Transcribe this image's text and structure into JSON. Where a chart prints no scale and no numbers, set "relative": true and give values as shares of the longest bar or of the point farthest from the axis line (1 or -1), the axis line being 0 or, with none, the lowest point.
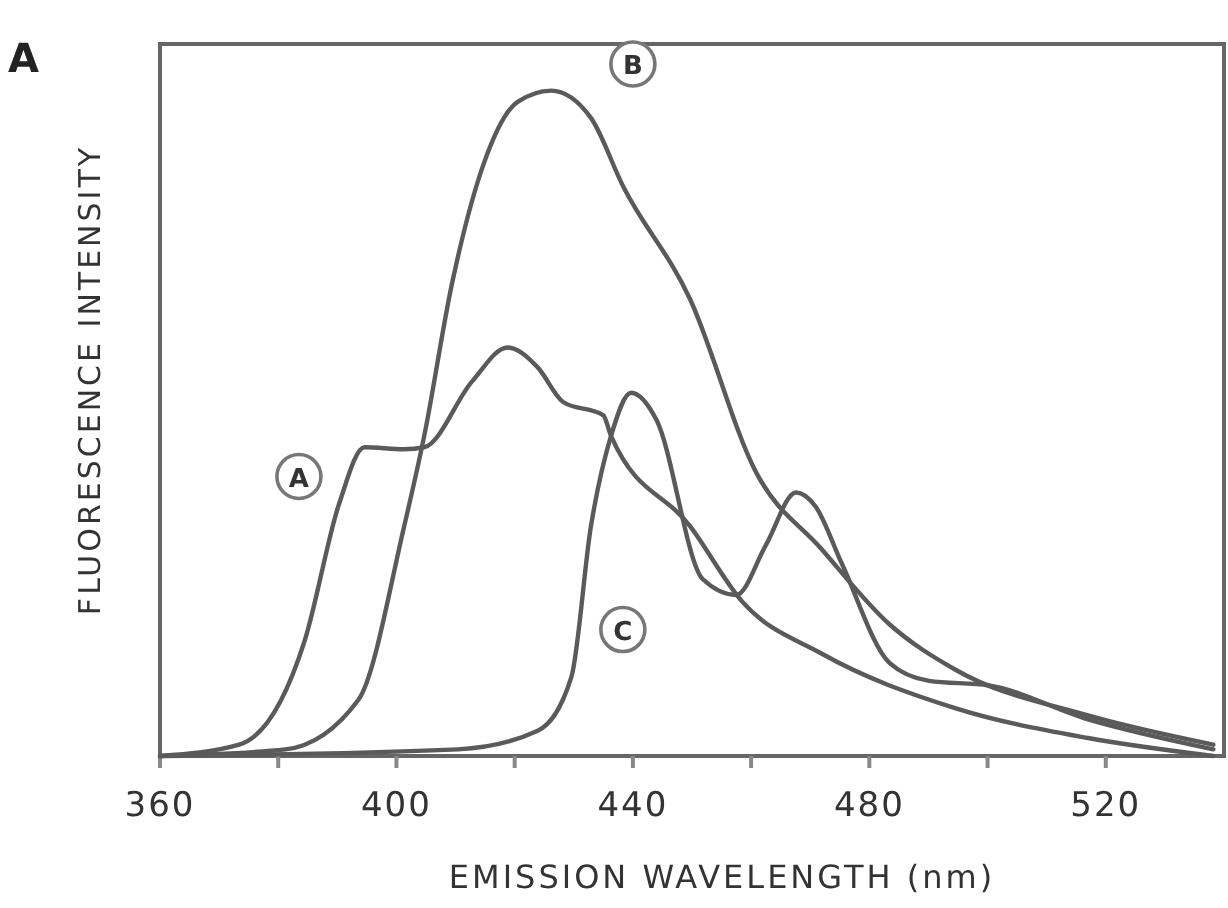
{
  "chart_data": {
    "type": "line",
    "relative": true,
    "xlabel": "EMISSION WAVELENGTH (nm)",
    "ylabel": "FLUORESCENCE INTENSITY",
    "xlim": [
      360,
      540
    ],
    "xticks": [
      360,
      {
        "value": 380,
        "label": null
      },
      400,
      {
        "value": 420,
        "label": null
      },
      440,
      {
        "value": 460,
        "label": null
      },
      480,
      {
        "value": 500,
        "label": null
      },
      520
    ],
    "grid": false,
    "marker": "none",
    "line_style": "solid",
    "annotations": [
      "A",
      {
        "text": "A",
        "x": 383.5,
        "y": 0.42
      },
      {
        "text": "B",
        "x": 440,
        "y": 1.04
      },
      {
        "text": "C",
        "x": 438.3,
        "y": 0.19
      }
    ],
    "series": [
      {
        "color": "#5a5a5a",
        "x": [
          360,
          373.4,
          384.5,
          390.3,
          394.6,
          401.3,
          404.7,
          412.8,
          418.8,
          423.9,
          428.2,
          435,
          436.3,
          449.7,
          458.5,
          471.9,
          494.5,
          517,
          538.2
        ],
        "values": [
          0,
          0.017,
          0.174,
          0.379,
          0.464,
          0.461,
          0.464,
          0.563,
          0.614,
          0.584,
          0.532,
          0.512,
          0.481,
          0.345,
          0.232,
          0.154,
          0.072,
          0.027,
          0
        ]
      },
      {
        "color": "#5a5a5a",
        "x": [
          360,
          381.2,
          393.6,
          401.3,
          404.7,
          409.4,
          414.8,
          420.5,
          426.2,
          432.9,
          438.3,
          449.7,
          460.8,
          471.9,
          483.4,
          494.5,
          517,
          538.2
        ],
        "values": [
          0,
          0.01,
          0.085,
          0.345,
          0.481,
          0.71,
          0.891,
          0.983,
          1,
          0.959,
          0.857,
          0.686,
          0.427,
          0.311,
          0.198,
          0.13,
          0.061,
          0.017
        ]
      },
      {
        "color": "#5a5a5a",
        "x": [
          360,
          410.4,
          423.9,
          429.6,
          432.9,
          436.3,
          439.7,
          444,
          451.8,
          457.5,
          462.5,
          467.6,
          470.9,
          475.3,
          483.4,
          490.1,
          500.2,
          517,
          538.2
        ],
        "values": [
          0,
          0.01,
          0.038,
          0.119,
          0.345,
          0.481,
          0.546,
          0.505,
          0.266,
          0.242,
          0.317,
          0.396,
          0.375,
          0.29,
          0.14,
          0.113,
          0.106,
          0.055,
          0.01
        ]
      }
    ]
  }
}
